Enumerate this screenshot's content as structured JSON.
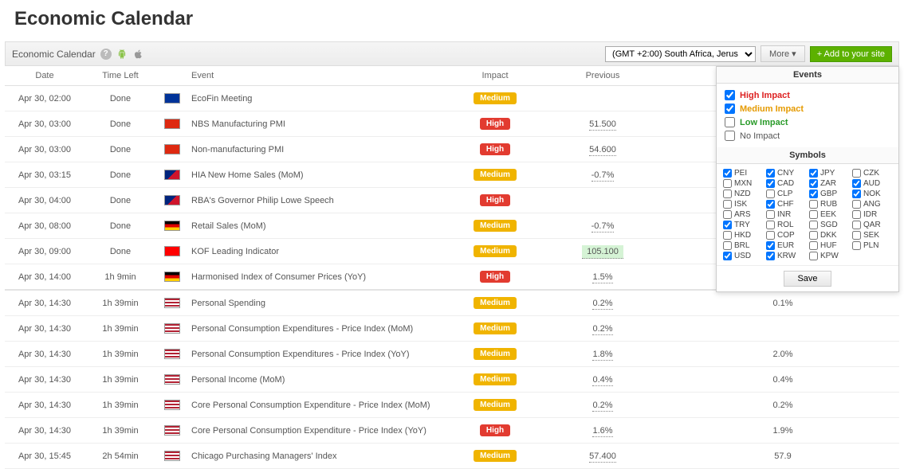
{
  "title": "Economic Calendar",
  "toolbar": {
    "label": "Economic Calendar",
    "timezone": "(GMT +2:00) South Africa, Jerus",
    "more_label": "More  ▾",
    "add_label": "+ Add to your site"
  },
  "columns": {
    "date": "Date",
    "time_left": "Time Left",
    "event": "Event",
    "impact": "Impact",
    "previous": "Previous"
  },
  "flags": {
    "eu": "linear-gradient(#003399,#003399)",
    "cn": "linear-gradient(#de2910,#de2910)",
    "au": "linear-gradient(135deg,#00247d 50%,#cf142b 50%)",
    "de": "linear-gradient(#000 33%,#dd0000 33% 66%,#ffce00 66%)",
    "ch": "linear-gradient(#ff0000,#ff0000)",
    "us": "repeating-linear-gradient(#b22234 0 2px,#fff 2px 4px)"
  },
  "rows": [
    {
      "date": "Apr 30, 02:00",
      "time": "Done",
      "flag": "eu",
      "event": "EcoFin Meeting",
      "impact": "Medium",
      "prev": "",
      "rest": ""
    },
    {
      "date": "Apr 30, 03:00",
      "time": "Done",
      "flag": "cn",
      "event": "NBS Manufacturing PMI",
      "impact": "High",
      "prev": "51.500",
      "rest": ""
    },
    {
      "date": "Apr 30, 03:00",
      "time": "Done",
      "flag": "cn",
      "event": "Non-manufacturing PMI",
      "impact": "High",
      "prev": "54.600",
      "rest": ""
    },
    {
      "date": "Apr 30, 03:15",
      "time": "Done",
      "flag": "au",
      "event": "HIA New Home Sales (MoM)",
      "impact": "Medium",
      "prev": "-0.7%",
      "rest": ""
    },
    {
      "date": "Apr 30, 04:00",
      "time": "Done",
      "flag": "au",
      "event": "RBA's Governor Philip Lowe Speech",
      "impact": "High",
      "prev": "",
      "rest": ""
    },
    {
      "date": "Apr 30, 08:00",
      "time": "Done",
      "flag": "de",
      "event": "Retail Sales (MoM)",
      "impact": "Medium",
      "prev": "-0.7%",
      "rest": ""
    },
    {
      "date": "Apr 30, 09:00",
      "time": "Done",
      "flag": "ch",
      "event": "KOF Leading Indicator",
      "impact": "Medium",
      "prev": "105.100",
      "highlight": true,
      "rest": ""
    },
    {
      "date": "Apr 30, 14:00",
      "time": "1h 9min",
      "flag": "de",
      "event": "Harmonised Index of Consumer Prices (YoY)",
      "impact": "High",
      "prev": "1.5%",
      "rest": ""
    },
    {
      "date": "Apr 30, 14:30",
      "time": "1h 39min",
      "flag": "us",
      "event": "Personal Spending",
      "impact": "Medium",
      "prev": "0.2%",
      "rest": "0.1%",
      "sep": true
    },
    {
      "date": "Apr 30, 14:30",
      "time": "1h 39min",
      "flag": "us",
      "event": "Personal Consumption Expenditures - Price Index (MoM)",
      "impact": "Medium",
      "prev": "0.2%",
      "rest": ""
    },
    {
      "date": "Apr 30, 14:30",
      "time": "1h 39min",
      "flag": "us",
      "event": "Personal Consumption Expenditures - Price Index (YoY)",
      "impact": "Medium",
      "prev": "1.8%",
      "rest": "2.0%"
    },
    {
      "date": "Apr 30, 14:30",
      "time": "1h 39min",
      "flag": "us",
      "event": "Personal Income (MoM)",
      "impact": "Medium",
      "prev": "0.4%",
      "rest": "0.4%"
    },
    {
      "date": "Apr 30, 14:30",
      "time": "1h 39min",
      "flag": "us",
      "event": "Core Personal Consumption Expenditure - Price Index (MoM)",
      "impact": "Medium",
      "prev": "0.2%",
      "rest": "0.2%"
    },
    {
      "date": "Apr 30, 14:30",
      "time": "1h 39min",
      "flag": "us",
      "event": "Core Personal Consumption Expenditure - Price Index (YoY)",
      "impact": "High",
      "prev": "1.6%",
      "rest": "1.9%"
    },
    {
      "date": "Apr 30, 15:45",
      "time": "2h 54min",
      "flag": "us",
      "event": "Chicago Purchasing Managers' Index",
      "impact": "Medium",
      "prev": "57.400",
      "rest": "57.9"
    }
  ],
  "panel": {
    "events_title": "Events",
    "symbols_title": "Symbols",
    "save_label": "Save",
    "impacts": [
      {
        "label": "High Impact",
        "cls": "lbl-high",
        "checked": true
      },
      {
        "label": "Medium Impact",
        "cls": "lbl-med",
        "checked": true
      },
      {
        "label": "Low Impact",
        "cls": "lbl-low",
        "checked": false
      },
      {
        "label": "No Impact",
        "cls": "lbl-none",
        "checked": false
      }
    ],
    "symbols": [
      {
        "c": "PEI",
        "k": true
      },
      {
        "c": "CNY",
        "k": true
      },
      {
        "c": "JPY",
        "k": true
      },
      {
        "c": "CZK",
        "k": false
      },
      {
        "c": "MXN",
        "k": false
      },
      {
        "c": "CAD",
        "k": true
      },
      {
        "c": "ZAR",
        "k": true
      },
      {
        "c": "AUD",
        "k": true
      },
      {
        "c": "NZD",
        "k": false
      },
      {
        "c": "CLP",
        "k": false
      },
      {
        "c": "GBP",
        "k": true
      },
      {
        "c": "NOK",
        "k": true
      },
      {
        "c": "ISK",
        "k": false
      },
      {
        "c": "CHF",
        "k": true
      },
      {
        "c": "RUB",
        "k": false
      },
      {
        "c": "ANG",
        "k": false
      },
      {
        "c": "ARS",
        "k": false
      },
      {
        "c": "INR",
        "k": false
      },
      {
        "c": "EEK",
        "k": false
      },
      {
        "c": "IDR",
        "k": false
      },
      {
        "c": "TRY",
        "k": true
      },
      {
        "c": "ROL",
        "k": false
      },
      {
        "c": "SGD",
        "k": false
      },
      {
        "c": "QAR",
        "k": false
      },
      {
        "c": "HKD",
        "k": false
      },
      {
        "c": "COP",
        "k": false
      },
      {
        "c": "DKK",
        "k": false
      },
      {
        "c": "SEK",
        "k": false
      },
      {
        "c": "BRL",
        "k": false
      },
      {
        "c": "EUR",
        "k": true
      },
      {
        "c": "HUF",
        "k": false
      },
      {
        "c": "PLN",
        "k": false
      },
      {
        "c": "USD",
        "k": true
      },
      {
        "c": "KRW",
        "k": true
      },
      {
        "c": "KPW",
        "k": false
      }
    ]
  }
}
